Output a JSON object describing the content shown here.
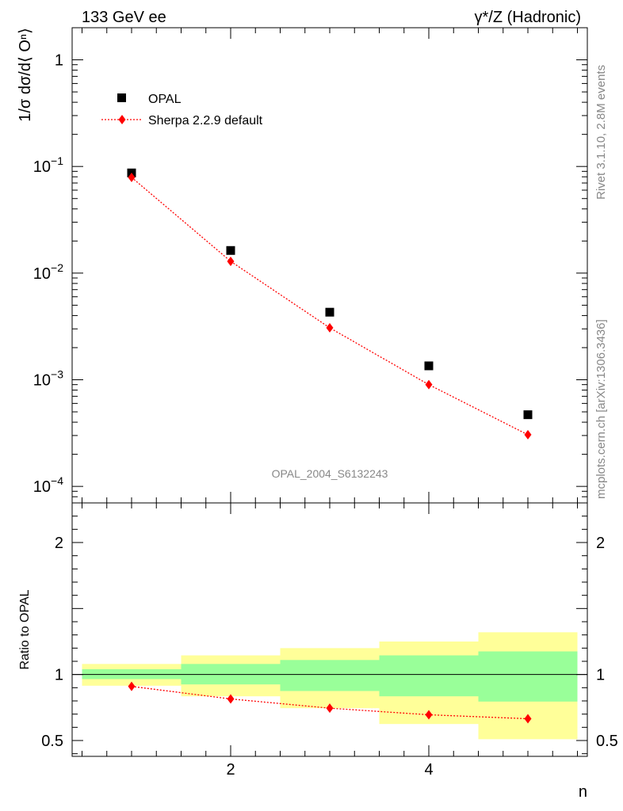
{
  "header": {
    "left_label": "133 GeV ee",
    "right_label": "γ*/Z (Hadronic)"
  },
  "side_labels": {
    "rivet": "Rivet 3.1.10,  2.8M events",
    "mcplots": "mcplots.cern.ch [arXiv:1306.3436]"
  },
  "watermark": "OPAL_2004_S6132243",
  "colors": {
    "data": "#000000",
    "mc": "#ff0000",
    "band_stat": "#99ff99",
    "band_total": "#ffff99"
  },
  "chart_data": [
    {
      "type": "scatter",
      "panel": "main",
      "ylabel": "1/σ dσ/d⟨ Oⁿ⟩",
      "yscale": "log",
      "ylim": [
        7e-05,
        2
      ],
      "xlim": [
        0.4,
        5.6
      ],
      "yticks": [
        {
          "value": 1,
          "base": "1",
          "exp": ""
        },
        {
          "value": 0.1,
          "base": "10",
          "exp": "−1"
        },
        {
          "value": 0.01,
          "base": "10",
          "exp": "−2"
        },
        {
          "value": 0.001,
          "base": "10",
          "exp": "−3"
        },
        {
          "value": 0.0001,
          "base": "10",
          "exp": "−4"
        }
      ],
      "legend": {
        "placement": "top-left",
        "entries": [
          "OPAL",
          "Sherpa 2.2.9 default"
        ]
      },
      "series": [
        {
          "name": "OPAL",
          "marker": "square",
          "x": [
            1,
            2,
            3,
            4,
            5
          ],
          "y": [
            0.087,
            0.0163,
            0.0043,
            0.00135,
            0.00047
          ]
        },
        {
          "name": "Sherpa 2.2.9 default",
          "marker": "diamond",
          "line": "dotted",
          "x": [
            1,
            2,
            3,
            4,
            5
          ],
          "y": [
            0.079,
            0.0129,
            0.00307,
            0.0009,
            0.000305
          ]
        }
      ]
    },
    {
      "type": "scatter",
      "panel": "ratio",
      "ylabel": "Ratio to OPAL",
      "xlabel": "n",
      "ylim": [
        0.38,
        2.3
      ],
      "xlim": [
        0.4,
        5.6
      ],
      "xticks": [
        2,
        4
      ],
      "yticks": [
        0.5,
        1,
        2
      ],
      "bands": [
        {
          "xlow": 0.5,
          "xhigh": 1.5,
          "stat": [
            0.965,
            1.04
          ],
          "total": [
            0.915,
            1.08
          ]
        },
        {
          "xlow": 1.5,
          "xhigh": 2.5,
          "stat": [
            0.925,
            1.08
          ],
          "total": [
            0.835,
            1.145
          ]
        },
        {
          "xlow": 2.5,
          "xhigh": 3.5,
          "stat": [
            0.875,
            1.11
          ],
          "total": [
            0.745,
            1.2
          ]
        },
        {
          "xlow": 3.5,
          "xhigh": 4.5,
          "stat": [
            0.835,
            1.145
          ],
          "total": [
            0.625,
            1.25
          ]
        },
        {
          "xlow": 4.5,
          "xhigh": 5.5,
          "stat": [
            0.795,
            1.175
          ],
          "total": [
            0.51,
            1.32
          ]
        }
      ],
      "series": [
        {
          "name": "Sherpa 2.2.9 default",
          "marker": "diamond",
          "line": "dotted",
          "x": [
            1,
            2,
            3,
            4,
            5
          ],
          "y": [
            0.91,
            0.815,
            0.745,
            0.695,
            0.665
          ]
        }
      ]
    }
  ]
}
